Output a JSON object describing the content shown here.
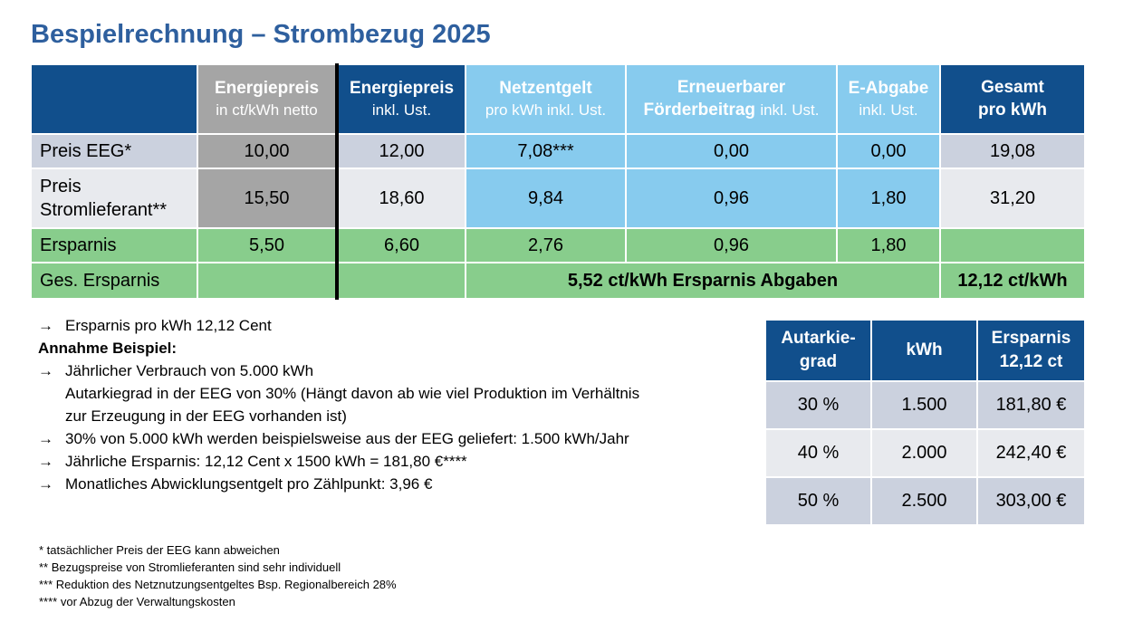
{
  "title": "Bespielrechnung – Strombezug 2025",
  "main_table": {
    "headers": [
      {
        "main": "",
        "sub": ""
      },
      {
        "main": "Energiepreis",
        "sub": "in ct/kWh netto"
      },
      {
        "main": "Energiepreis",
        "sub": "inkl. Ust."
      },
      {
        "main": "Netzentgelt",
        "sub": "pro kWh inkl. Ust."
      },
      {
        "main": "Erneuerbarer",
        "main2": "Förderbeitrag",
        "sub": "inkl. Ust."
      },
      {
        "main": "E-Abgabe",
        "sub": "inkl. Ust."
      },
      {
        "main": "Gesamt",
        "sub": "pro kWh"
      }
    ],
    "rows": [
      {
        "label": "Preis EEG*",
        "values": [
          "10,00",
          "12,00",
          "7,08***",
          "0,00",
          "0,00",
          "19,08"
        ]
      },
      {
        "label_line1": "Preis",
        "label_line2": "Stromlieferant**",
        "values": [
          "15,50",
          "18,60",
          "9,84",
          "0,96",
          "1,80",
          "31,20"
        ]
      },
      {
        "label": "Ersparnis",
        "values": [
          "5,50",
          "6,60",
          "2,76",
          "0,96",
          "1,80",
          ""
        ]
      },
      {
        "label": "Ges. Ersparnis",
        "merged": "5,52 ct/kWh Ersparnis Abgaben",
        "total": "12,12 ct/kWh"
      }
    ]
  },
  "notes": {
    "arrow": "→",
    "l1": "Ersparnis pro kWh 12,12 Cent",
    "l2": "Annahme Beispiel:",
    "l3": "Jährlicher Verbrauch von 5.000 kWh",
    "l4": "Autarkiegrad in der EEG von 30% (Hängt davon ab wie viel Produktion im Verhältnis",
    "l5": "zur Erzeugung in der EEG vorhanden ist)",
    "l6": "30% von 5.000 kWh werden beispielsweise aus der EEG geliefert: 1.500 kWh/Jahr",
    "l7": "Jährliche Ersparnis:  12,12 Cent x 1500 kWh = 181,80 €****",
    "l8": "Monatliches Abwicklungsentgelt pro Zählpunkt: 3,96 €"
  },
  "side_table": {
    "h1a": "Autarkie-",
    "h1b": "grad",
    "h2": "kWh",
    "h3a": "Ersparnis",
    "h3b": "12,12 ct",
    "rows": [
      [
        "30 %",
        "1.500",
        "181,80 €"
      ],
      [
        "40 %",
        "2.000",
        "242,40 €"
      ],
      [
        "50 %",
        "2.500",
        "303,00 €"
      ]
    ]
  },
  "footnotes": [
    "* tatsächlicher Preis der EEG kann abweichen",
    "** Bezugspreise von Stromlieferanten sind sehr individuell",
    "*** Reduktion des Netznutzungsentgeltes Bsp. Regionalbereich 28%",
    "**** vor Abzug der Verwaltungskosten"
  ],
  "colors": {
    "navy": "#114f8c",
    "grey": "#a5a5a5",
    "light_blue": "#87cbee",
    "green": "#88cd8c",
    "title": "#2e5f9e"
  }
}
